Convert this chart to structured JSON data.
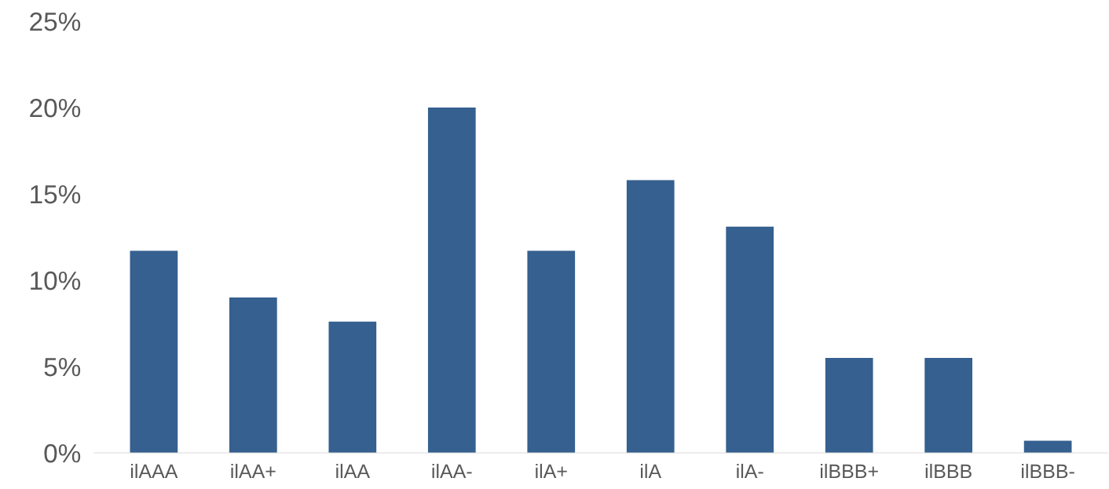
{
  "chart_data": {
    "type": "bar",
    "categories": [
      "ilAAA",
      "ilAA+",
      "ilAA",
      "ilAA-",
      "ilA+",
      "ilA",
      "ilA-",
      "ilBBB+",
      "ilBBB",
      "ilBBB-"
    ],
    "values": [
      11.7,
      9.0,
      7.6,
      20.0,
      11.7,
      15.8,
      13.1,
      5.5,
      5.5,
      0.7
    ],
    "color": "#35608f",
    "ylim": [
      0,
      25
    ],
    "yticks": [
      {
        "value": 0,
        "label": "0%"
      },
      {
        "value": 5,
        "label": "5%"
      },
      {
        "value": 10,
        "label": "10%"
      },
      {
        "value": 15,
        "label": "15%"
      },
      {
        "value": 20,
        "label": "20%"
      },
      {
        "value": 25,
        "label": "25%"
      }
    ],
    "grid": false,
    "legend": false
  }
}
